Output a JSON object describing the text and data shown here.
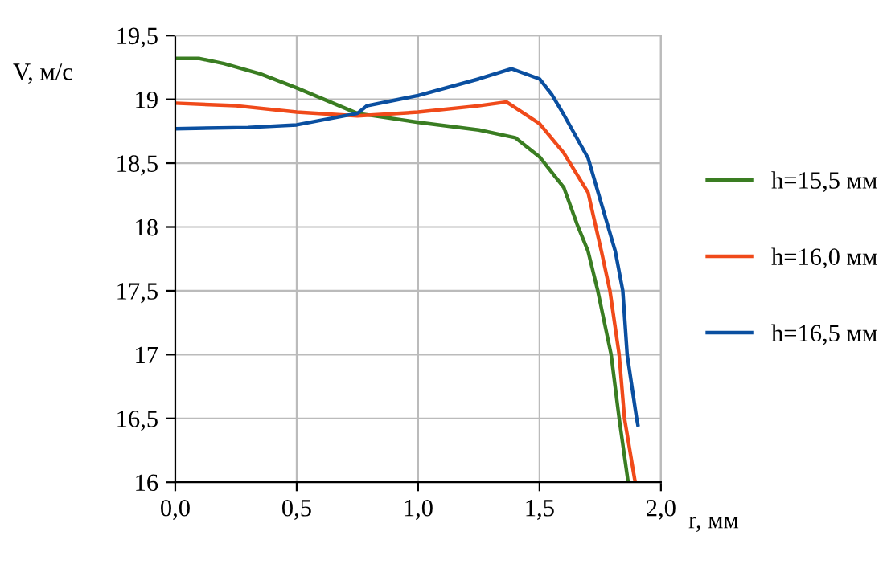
{
  "chart_data": {
    "type": "line",
    "xlabel": "r, мм",
    "ylabel": "V, м/с",
    "xlim": [
      0,
      2
    ],
    "ylim": [
      16,
      19.5
    ],
    "xticks": [
      {
        "value": 0,
        "label": "0,0"
      },
      {
        "value": 0.5,
        "label": "0,5"
      },
      {
        "value": 1,
        "label": "1,0"
      },
      {
        "value": 1.5,
        "label": "1,5"
      },
      {
        "value": 2,
        "label": "2,0"
      }
    ],
    "yticks": [
      16,
      {
        "value": 16.5,
        "label": "16,5"
      },
      17,
      {
        "value": 17.5,
        "label": "17,5"
      },
      18,
      {
        "value": 18.5,
        "label": "18,5"
      },
      19,
      {
        "value": 19.5,
        "label": "19,5"
      }
    ],
    "grid": true,
    "legend": "right",
    "marker": "none",
    "line_style": "solid",
    "series": [
      {
        "name": "h=15,5 мм",
        "color": "#3a7d22",
        "x": [
          0,
          0.1,
          0.2,
          0.35,
          0.5,
          0.75,
          1.0,
          1.25,
          1.4,
          1.5,
          1.6,
          1.655,
          1.7,
          1.74,
          1.795,
          1.828,
          1.865
        ],
        "values": [
          19.32,
          19.32,
          19.28,
          19.2,
          19.09,
          18.89,
          18.82,
          18.76,
          18.7,
          18.55,
          18.31,
          18.02,
          17.81,
          17.5,
          17.0,
          16.5,
          16.0
        ]
      },
      {
        "name": "h=16,0 мм",
        "color": "#f04a1a",
        "x": [
          0,
          0.25,
          0.5,
          0.75,
          1.0,
          1.25,
          1.364,
          1.5,
          1.6,
          1.7,
          1.755,
          1.79,
          1.828,
          1.85,
          1.894
        ],
        "values": [
          18.97,
          18.95,
          18.9,
          18.87,
          18.9,
          18.95,
          18.98,
          18.81,
          18.58,
          18.27,
          17.81,
          17.5,
          17.0,
          16.5,
          16.0
        ]
      },
      {
        "name": "h=16,5 мм",
        "color": "#0a4fa0",
        "x": [
          0,
          0.3,
          0.5,
          0.75,
          0.79,
          1.0,
          1.25,
          1.384,
          1.5,
          1.55,
          1.6,
          1.7,
          1.812,
          1.843,
          1.861,
          1.9,
          1.905
        ],
        "values": [
          18.77,
          18.78,
          18.8,
          18.89,
          18.95,
          19.03,
          19.16,
          19.24,
          19.16,
          19.04,
          18.88,
          18.54,
          17.81,
          17.5,
          17.0,
          16.5,
          16.45
        ]
      }
    ]
  }
}
